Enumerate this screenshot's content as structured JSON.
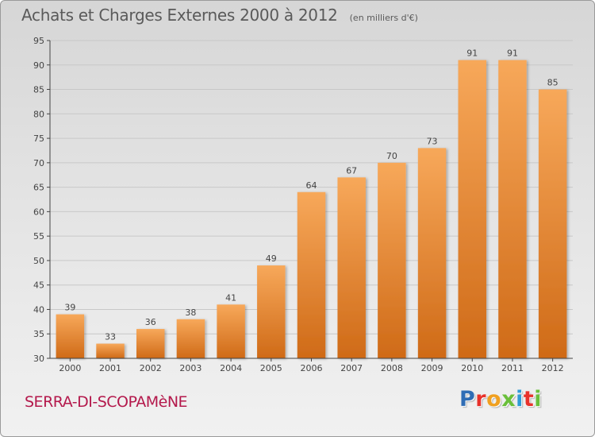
{
  "header": {
    "title": "Achats et Charges Externes 2000 à 2012",
    "unit": "(en milliers d'€)"
  },
  "footer": {
    "commune": "SERRA-DI-SCOPAMèNE",
    "brand": "Proxiti",
    "brand_colors": [
      "#2f6db5",
      "#e8322b",
      "#f0a020",
      "#6abf3a",
      "#2f9bd7",
      "#e8322b",
      "#6abf3a"
    ]
  },
  "colors": {
    "bar_light": "#f7a85a",
    "bar_dark": "#cf6a17",
    "grid": "#c8c8c8",
    "axis": "#444444",
    "text": "#444444"
  },
  "chart_data": {
    "type": "bar",
    "title": "Achats et Charges Externes 2000 à 2012",
    "xlabel": "",
    "ylabel": "",
    "categories": [
      "2000",
      "2001",
      "2002",
      "2003",
      "2004",
      "2005",
      "2006",
      "2007",
      "2008",
      "2009",
      "2010",
      "2011",
      "2012"
    ],
    "values": [
      39,
      33,
      36,
      38,
      41,
      49,
      64,
      67,
      70,
      73,
      91,
      91,
      85
    ],
    "ylim": [
      30,
      95
    ],
    "yticks": [
      30,
      35,
      40,
      45,
      50,
      55,
      60,
      65,
      70,
      75,
      80,
      85,
      90,
      95
    ],
    "grid": true,
    "data_labels": true
  }
}
